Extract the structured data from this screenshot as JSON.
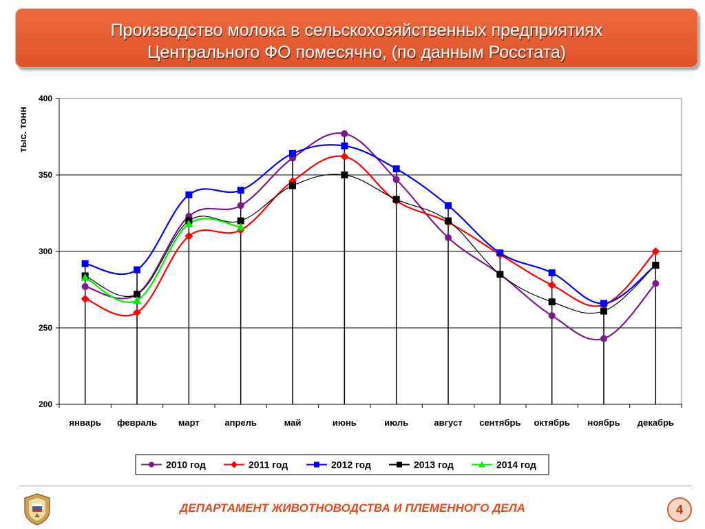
{
  "title": {
    "line1": "Производство молока в сельскохозяйственных предприятиях",
    "line2": "Центрального ФО помесячно, (по данным Росстата)"
  },
  "footer": {
    "department": "ДЕПАРТАМЕНТ ЖИВОТНОВОДСТВА И ПЛЕМЕННОГО ДЕЛА",
    "page_number": "4",
    "logo_icon": "emblem-icon"
  },
  "chart_data": {
    "type": "line",
    "ylabel": "тыс. тонн",
    "xlabel": "",
    "ylim": [
      200,
      400
    ],
    "yticks": [
      200,
      250,
      300,
      350,
      400
    ],
    "grid": true,
    "legend_position": "bottom",
    "categories": [
      "январь",
      "февраль",
      "март",
      "апрель",
      "май",
      "июнь",
      "июль",
      "август",
      "сентябрь",
      "октябрь",
      "ноябрь",
      "декабрь"
    ],
    "series": [
      {
        "name": "2010 год",
        "color": "#7b1a8c",
        "marker": "circle",
        "values": [
          277,
          272,
          323,
          330,
          361,
          377,
          347,
          309,
          285,
          258,
          243,
          279
        ]
      },
      {
        "name": "2011 год",
        "color": "#ff0000",
        "marker": "diamond",
        "values": [
          269,
          260,
          310,
          314,
          346,
          362,
          333,
          319,
          298,
          278,
          265,
          300
        ]
      },
      {
        "name": "2012 год",
        "color": "#0000ff",
        "marker": "square",
        "values": [
          292,
          288,
          337,
          340,
          364,
          369,
          354,
          330,
          299,
          286,
          266,
          291
        ]
      },
      {
        "name": "2013 год",
        "color": "#000000",
        "marker": "square",
        "values": [
          284,
          272,
          320,
          320,
          343,
          350,
          334,
          320,
          285,
          267,
          261,
          291
        ]
      },
      {
        "name": "2014 год",
        "color": "#00ee00",
        "marker": "triangle",
        "values": [
          283,
          268,
          318,
          316,
          null,
          null,
          null,
          null,
          null,
          null,
          null,
          null
        ]
      }
    ]
  }
}
